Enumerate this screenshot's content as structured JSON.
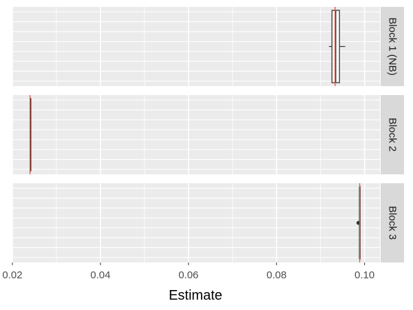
{
  "chart_data": {
    "type": "boxplot",
    "xlabel": "Estimate",
    "xlim": [
      0.02,
      0.1035
    ],
    "x_ticks": [
      0.02,
      0.04,
      0.06,
      0.08,
      0.1
    ],
    "x_tick_labels": [
      "0.02",
      "0.04",
      "0.06",
      "0.08",
      "0.10"
    ],
    "grid": true,
    "panel_background": "#ebebeb",
    "strip_background": "#d9d9d9",
    "reference_line_color": "#e8503c",
    "panels": [
      {
        "label": "Block 1 (NB)",
        "box": {
          "whisker_low": 0.0919,
          "q1": 0.0926,
          "median": 0.0934,
          "q3": 0.0943,
          "whisker_high": 0.0956
        },
        "outliers": [],
        "reference": 0.0933
      },
      {
        "label": "Block 2",
        "box": {
          "whisker_low": 0.0241,
          "q1": 0.0241,
          "median": 0.0241,
          "q3": 0.0241,
          "whisker_high": 0.0241
        },
        "outliers": [],
        "reference": 0.024
      },
      {
        "label": "Block 3",
        "box": {
          "whisker_low": 0.0989,
          "q1": 0.0989,
          "median": 0.0989,
          "q3": 0.0989,
          "whisker_high": 0.0989
        },
        "outliers": [
          0.0986
        ],
        "reference": 0.0989
      }
    ]
  }
}
